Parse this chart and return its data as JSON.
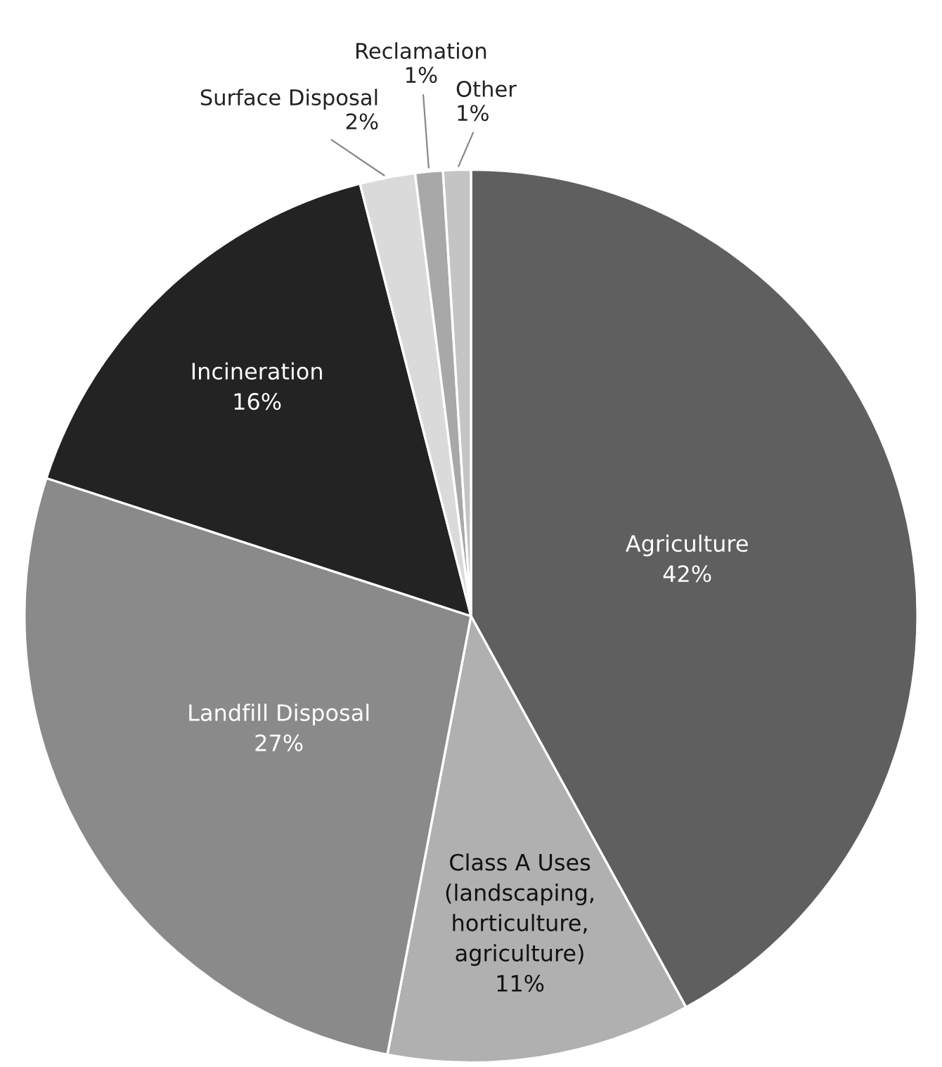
{
  "chart_data": {
    "type": "pie",
    "categories": [
      "Agriculture",
      "Class A Uses\n(landscaping,\nhorticulture,\nagriculture)",
      "Landfill Disposal",
      "Incineration",
      "Surface Disposal",
      "Reclamation",
      "Other"
    ],
    "values": [
      42,
      11,
      27,
      16,
      2,
      1,
      1
    ],
    "value_labels": [
      "42%",
      "11%",
      "27%",
      "16%",
      "2%",
      "1%",
      "1%"
    ],
    "colors": [
      "#5f5f5f",
      "#b0b0b0",
      "#8a8a8a",
      "#232323",
      "#dadada",
      "#a8a8a8",
      "#c4c4c4"
    ]
  }
}
